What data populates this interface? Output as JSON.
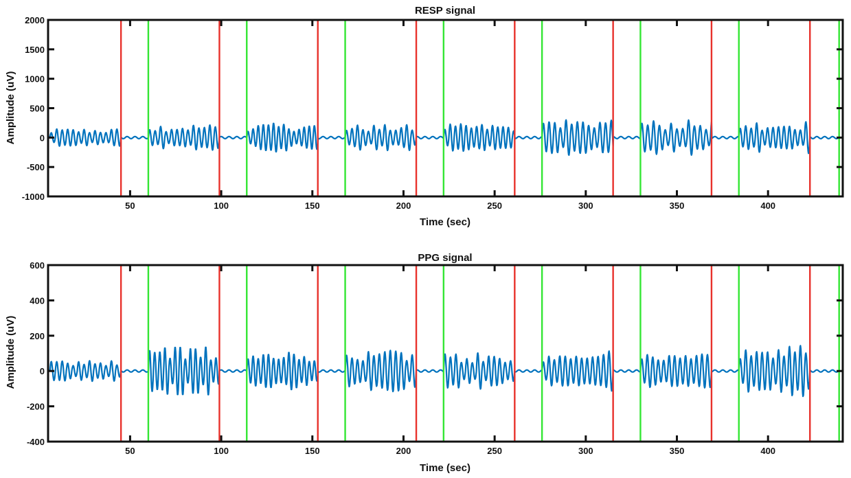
{
  "chart_data": [
    {
      "type": "line",
      "title": "RESP signal",
      "xlabel": "Time (sec)",
      "ylabel": "Amplitude (uV)",
      "xlim": [
        5,
        441
      ],
      "ylim": [
        -1000,
        2000
      ],
      "xticks": [
        50,
        100,
        150,
        200,
        250,
        300,
        350,
        400
      ],
      "yticks": [
        -1000,
        -500,
        0,
        500,
        1000,
        1500,
        2000
      ],
      "xtick_labels": [
        "50",
        "100",
        "150",
        "200",
        "250",
        "300",
        "350",
        "400"
      ],
      "ytick_labels": [
        "-1000",
        "-500",
        "0",
        "500",
        "1000",
        "1500",
        "2000"
      ],
      "series": [
        {
          "name": "RESP",
          "color": "#0072BD",
          "segments": [
            {
              "start": 6,
              "end": 45,
              "amplitude": 120,
              "period": 3.0
            },
            {
              "start": 60,
              "end": 99,
              "amplitude": 180,
              "period": 3.0
            },
            {
              "start": 114,
              "end": 153,
              "amplitude": 190,
              "period": 2.8
            },
            {
              "start": 168,
              "end": 207,
              "amplitude": 170,
              "period": 3.0
            },
            {
              "start": 222,
              "end": 261,
              "amplitude": 180,
              "period": 2.9
            },
            {
              "start": 276,
              "end": 315,
              "amplitude": 260,
              "period": 3.1
            },
            {
              "start": 330,
              "end": 369,
              "amplitude": 230,
              "period": 3.2
            },
            {
              "start": 384,
              "end": 423,
              "amplitude": 220,
              "period": 3.0
            }
          ]
        }
      ],
      "markers": {
        "red": [
          45,
          99,
          153,
          207,
          261,
          315,
          369,
          423
        ],
        "green": [
          60,
          114,
          168,
          222,
          276,
          330,
          384,
          439
        ],
        "red_color": "#E8312B",
        "green_color": "#33E633"
      }
    },
    {
      "type": "line",
      "title": "PPG signal",
      "xlabel": "Time (sec)",
      "ylabel": "Amplitude (uV)",
      "xlim": [
        5,
        441
      ],
      "ylim": [
        -400,
        600
      ],
      "xticks": [
        50,
        100,
        150,
        200,
        250,
        300,
        350,
        400
      ],
      "yticks": [
        -400,
        -200,
        0,
        200,
        400,
        600
      ],
      "xtick_labels": [
        "50",
        "100",
        "150",
        "200",
        "250",
        "300",
        "350",
        "400"
      ],
      "ytick_labels": [
        "-400",
        "-200",
        "0",
        "200",
        "400",
        "600"
      ],
      "series": [
        {
          "name": "PPG",
          "color": "#0072BD",
          "segments": [
            {
              "start": 6,
              "end": 45,
              "amplitude": 55,
              "period": 3.0
            },
            {
              "start": 60,
              "end": 99,
              "amplitude": 110,
              "period": 2.8
            },
            {
              "start": 114,
              "end": 153,
              "amplitude": 90,
              "period": 2.8
            },
            {
              "start": 168,
              "end": 207,
              "amplitude": 90,
              "period": 3.0
            },
            {
              "start": 222,
              "end": 261,
              "amplitude": 80,
              "period": 3.0
            },
            {
              "start": 276,
              "end": 315,
              "amplitude": 90,
              "period": 3.0
            },
            {
              "start": 330,
              "end": 369,
              "amplitude": 80,
              "period": 3.0
            },
            {
              "start": 384,
              "end": 423,
              "amplitude": 120,
              "period": 3.0
            }
          ]
        }
      ],
      "markers": {
        "red": [
          45,
          99,
          153,
          207,
          261,
          315,
          369,
          423
        ],
        "green": [
          60,
          114,
          168,
          222,
          276,
          330,
          384,
          439
        ],
        "red_color": "#E8312B",
        "green_color": "#33E633"
      }
    }
  ]
}
